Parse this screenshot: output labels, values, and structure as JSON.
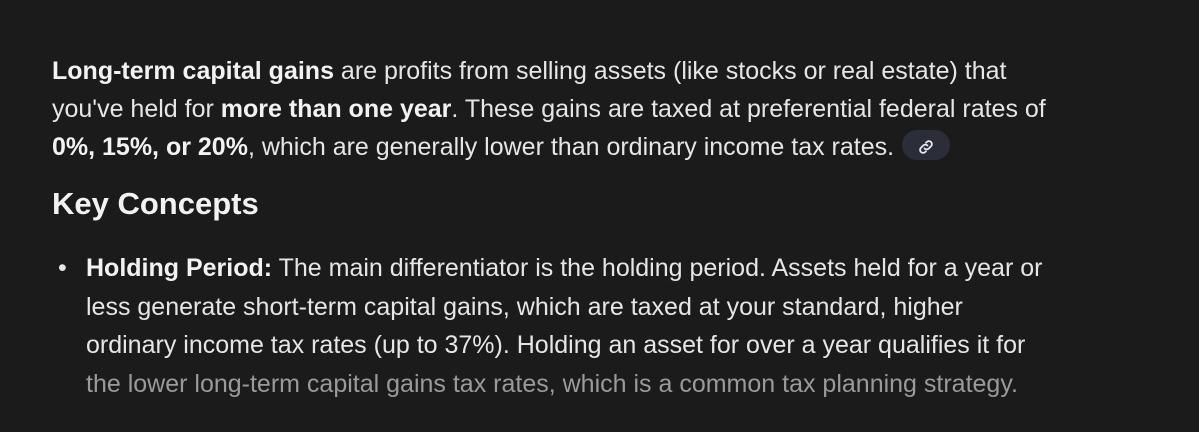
{
  "intro": {
    "s1_bold": "Long-term capital gains",
    "s1": " are profits from selling assets (like stocks or real estate) that",
    "s2": "you've held for ",
    "s2_bold": "more than one year",
    "s3": ". These gains are taxed at preferential federal rates of",
    "s4_bold": "0%, 15%, or 20%",
    "s4": ", which are generally lower than ordinary income tax rates.",
    "link_icon": "link-icon"
  },
  "heading": "Key Concepts",
  "bullets": [
    {
      "label": "Holding Period:",
      "line1": " The main differentiator is the holding period. Assets held for a year or",
      "line2": "less generate short-term capital gains, which are taxed at your standard, higher",
      "line3": "ordinary income tax rates (up to 37%). Holding an asset for over a year qualifies it for",
      "line4": "the lower long-term capital gains tax rates, which is a common tax planning strategy."
    }
  ],
  "colors": {
    "background": "#1b1b1c",
    "text": "#e6e6e6",
    "chip": "#2b2e38"
  }
}
